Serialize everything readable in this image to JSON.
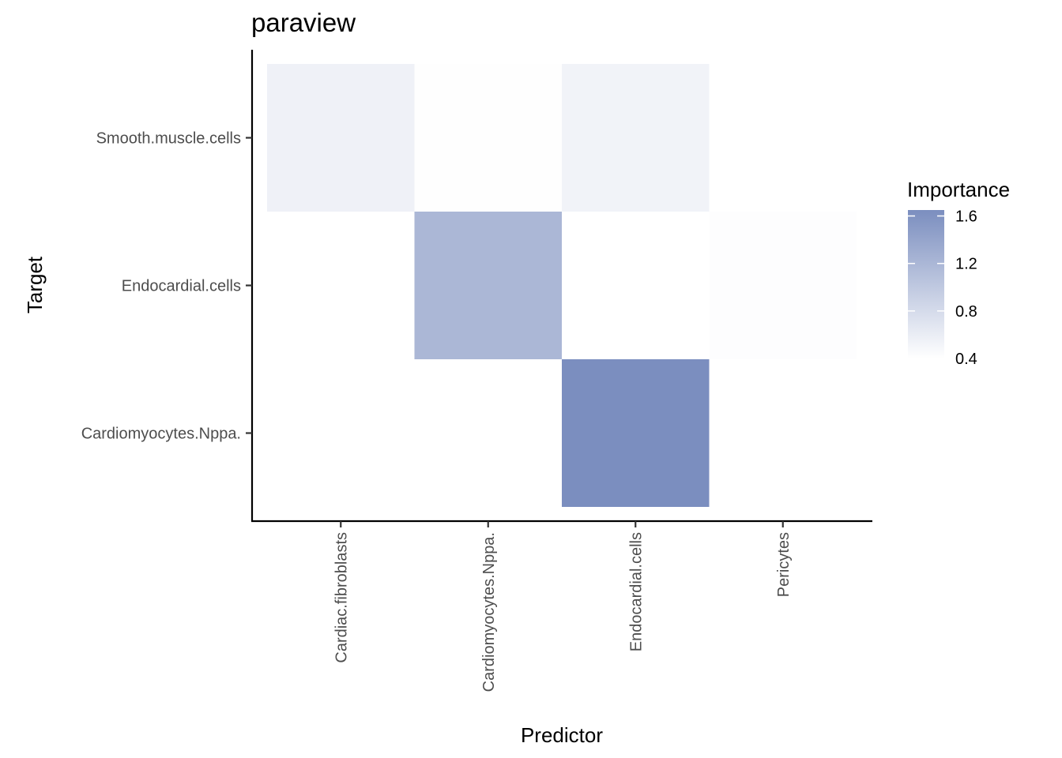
{
  "chart_data": {
    "type": "heatmap",
    "title": "paraview",
    "xlabel": "Predictor",
    "ylabel": "Target",
    "x_categories": [
      "Cardiac.fibroblasts",
      "Cardiomyocytes.Nppa.",
      "Endocardial.cells",
      "Pericytes"
    ],
    "y_categories": [
      "Cardiomyocytes.Nppa.",
      "Endocardial.cells",
      "Smooth.muscle.cells"
    ],
    "cells": [
      {
        "x": "Cardiac.fibroblasts",
        "y": "Smooth.muscle.cells",
        "value": 0.55
      },
      {
        "x": "Cardiomyocytes.Nppa.",
        "y": "Smooth.muscle.cells",
        "value": 0.41
      },
      {
        "x": "Endocardial.cells",
        "y": "Smooth.muscle.cells",
        "value": 0.53
      },
      {
        "x": "Cardiomyocytes.Nppa.",
        "y": "Endocardial.cells",
        "value": 1.2
      },
      {
        "x": "Pericytes",
        "y": "Endocardial.cells",
        "value": 0.42
      },
      {
        "x": "Endocardial.cells",
        "y": "Cardiomyocytes.Nppa.",
        "value": 1.65
      }
    ],
    "legend": {
      "title": "Importance",
      "breaks": [
        0.4,
        0.8,
        1.2,
        1.6
      ],
      "break_labels": [
        "0.4",
        "0.8",
        "1.2",
        "1.6"
      ],
      "range": [
        0.4,
        1.65
      ],
      "low_color": "#ffffff",
      "high_color": "#7b8ebf",
      "position": "right"
    },
    "grid": false
  }
}
